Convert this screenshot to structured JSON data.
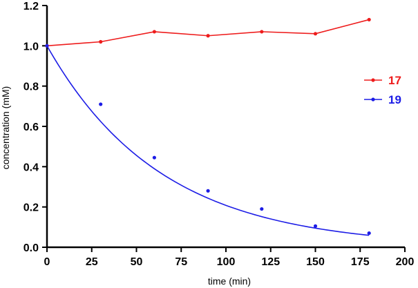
{
  "chart_data": {
    "type": "scatter",
    "title": "",
    "xlabel": "time (min)",
    "ylabel": "concentration (mM)",
    "xlim": [
      0,
      200
    ],
    "ylim": [
      0,
      1.2
    ],
    "x_ticks": [
      "0",
      "25",
      "50",
      "75",
      "100",
      "125",
      "150",
      "175",
      "200"
    ],
    "y_ticks": [
      "0.0",
      "0.2",
      "0.4",
      "0.6",
      "0.8",
      "1.0",
      "1.2"
    ],
    "grid": false,
    "legend_position": "right",
    "series": [
      {
        "name": "17",
        "color": "#ee1c1c",
        "connect": "straight",
        "x": [
          0,
          30,
          60,
          90,
          120,
          150,
          180
        ],
        "y": [
          1.0,
          1.02,
          1.07,
          1.05,
          1.07,
          1.06,
          1.13
        ]
      },
      {
        "name": "19",
        "color": "#1c1ce6",
        "connect": "exponential-fit",
        "fit": {
          "y0": 1.0,
          "k": 0.0157
        },
        "x": [
          0,
          30,
          60,
          90,
          120,
          150,
          180
        ],
        "y": [
          1.0,
          0.71,
          0.445,
          0.28,
          0.19,
          0.105,
          0.07
        ]
      }
    ]
  }
}
